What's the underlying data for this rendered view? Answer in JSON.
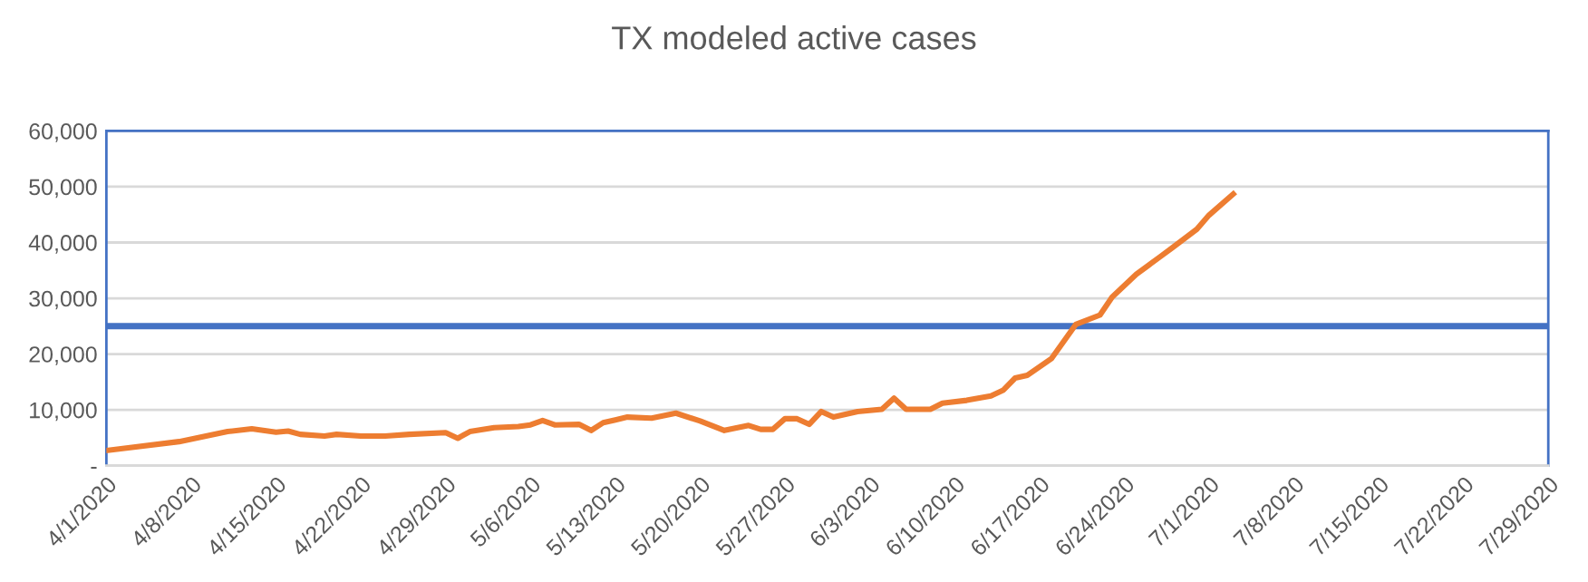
{
  "chart_data": {
    "type": "line",
    "title": "TX modeled active cases",
    "x": [
      "2020-04-01",
      "2020-04-07",
      "2020-04-11",
      "2020-04-13",
      "2020-04-15",
      "2020-04-16",
      "2020-04-17",
      "2020-04-19",
      "2020-04-20",
      "2020-04-22",
      "2020-04-24",
      "2020-04-26",
      "2020-04-29",
      "2020-04-30",
      "2020-05-01",
      "2020-05-03",
      "2020-05-05",
      "2020-05-06",
      "2020-05-07",
      "2020-05-08",
      "2020-05-10",
      "2020-05-11",
      "2020-05-12",
      "2020-05-13",
      "2020-05-14",
      "2020-05-16",
      "2020-05-18",
      "2020-05-20",
      "2020-05-22",
      "2020-05-24",
      "2020-05-25",
      "2020-05-26",
      "2020-05-27",
      "2020-05-28",
      "2020-05-29",
      "2020-05-30",
      "2020-05-31",
      "2020-06-02",
      "2020-06-04",
      "2020-06-05",
      "2020-06-06",
      "2020-06-08",
      "2020-06-09",
      "2020-06-11",
      "2020-06-13",
      "2020-06-14",
      "2020-06-15",
      "2020-06-16",
      "2020-06-18",
      "2020-06-20",
      "2020-06-22",
      "2020-06-23",
      "2020-06-25",
      "2020-06-26",
      "2020-06-27",
      "2020-06-28",
      "2020-06-30",
      "2020-07-01",
      "2020-07-03"
    ],
    "series": [
      {
        "color": "#ed7d31",
        "values": [
          2700,
          4300,
          6100,
          6600,
          6000,
          6200,
          5600,
          5300,
          5600,
          5300,
          5300,
          5600,
          5900,
          4900,
          6100,
          6800,
          7000,
          7300,
          8100,
          7300,
          7400,
          6300,
          7700,
          8200,
          8700,
          8500,
          9400,
          8000,
          6300,
          7200,
          6500,
          6500,
          8400,
          8400,
          7400,
          9700,
          8700,
          9700,
          10100,
          12100,
          10100,
          10100,
          11200,
          11700,
          12500,
          13500,
          15700,
          16200,
          19200,
          25300,
          27000,
          30200,
          34300,
          35900,
          37500,
          39100,
          42400,
          44900,
          48700
        ]
      }
    ],
    "ref_lines": [
      {
        "axis": "y",
        "value": 25000,
        "color": "#4472c4"
      }
    ],
    "xlim": [
      "2020-04-01",
      "2020-07-29"
    ],
    "xticks": [
      {
        "value": "2020-04-01",
        "label": "4/1/2020"
      },
      {
        "value": "2020-04-08",
        "label": "4/8/2020"
      },
      {
        "value": "2020-04-15",
        "label": "4/15/2020"
      },
      {
        "value": "2020-04-22",
        "label": "4/22/2020"
      },
      {
        "value": "2020-04-29",
        "label": "4/29/2020"
      },
      {
        "value": "2020-05-06",
        "label": "5/6/2020"
      },
      {
        "value": "2020-05-13",
        "label": "5/13/2020"
      },
      {
        "value": "2020-05-20",
        "label": "5/20/2020"
      },
      {
        "value": "2020-05-27",
        "label": "5/27/2020"
      },
      {
        "value": "2020-06-03",
        "label": "6/3/2020"
      },
      {
        "value": "2020-06-10",
        "label": "6/10/2020"
      },
      {
        "value": "2020-06-17",
        "label": "6/17/2020"
      },
      {
        "value": "2020-06-24",
        "label": "6/24/2020"
      },
      {
        "value": "2020-07-01",
        "label": "7/1/2020"
      },
      {
        "value": "2020-07-08",
        "label": "7/8/2020"
      },
      {
        "value": "2020-07-15",
        "label": "7/15/2020"
      },
      {
        "value": "2020-07-22",
        "label": "7/22/2020"
      },
      {
        "value": "2020-07-29",
        "label": "7/29/2020"
      }
    ],
    "ylim": [
      0,
      60000
    ],
    "yticks": [
      {
        "value": 0,
        "label": "-"
      },
      {
        "value": 10000,
        "label": "10,000"
      },
      {
        "value": 20000,
        "label": "20,000"
      },
      {
        "value": 30000,
        "label": "30,000"
      },
      {
        "value": 40000,
        "label": "40,000"
      },
      {
        "value": 50000,
        "label": "50,000"
      },
      {
        "value": 60000,
        "label": "60,000"
      }
    ],
    "grid": "y",
    "legend": false,
    "marker": "none",
    "line_style": "solid"
  }
}
